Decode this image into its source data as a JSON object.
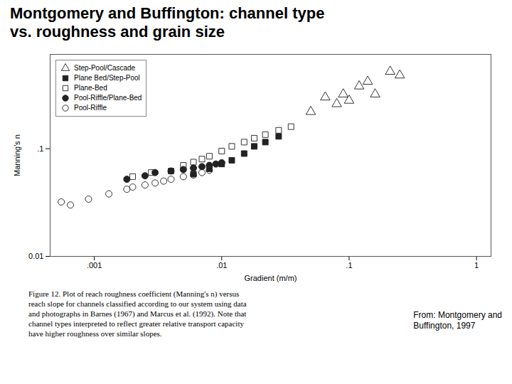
{
  "chart_data": {
    "type": "scatter",
    "title": "Montgomery and Buffington: channel type\nvs. roughness and grain size",
    "x_label": "Gradient (m/m)",
    "y_label": "Manning's n",
    "annotations": [
      "Figure 12. Plot of reach roughness coefficient (Manning's n) versus\nreach slope for channels classified according to our system using data\nand photographs in Barnes (1967) and Marcus et al. (1992). Note that\nchannel types interpreted to reflect greater relative transport capacity\nhave higher roughness over similar slopes.",
      "From: Montgomery and\nBuffington, 1997"
    ],
    "log": true,
    "grid": false,
    "legend": "upper left",
    "xlim": [
      0.00045,
      1.3
    ],
    "ylim": [
      0.01,
      0.75
    ],
    "xticks": [
      {
        "value": 0.001,
        "label": ".001"
      },
      {
        "value": 0.01,
        "label": ".01"
      },
      {
        "value": 0.1,
        "label": ".1"
      },
      1
    ],
    "yticks": [
      0.01,
      {
        "value": 0.1,
        "label": ".1"
      }
    ],
    "series": [
      {
        "name": "Step-Pool/Cascade",
        "marker": "triangle-open",
        "color": "#333333",
        "x": [
          0.05,
          0.065,
          0.08,
          0.09,
          0.1,
          0.12,
          0.14,
          0.16,
          0.21,
          0.25
        ],
        "values": [
          0.22,
          0.3,
          0.26,
          0.32,
          0.28,
          0.38,
          0.42,
          0.32,
          0.52,
          0.48
        ]
      },
      {
        "name": "Plane Bed/Step-Pool",
        "marker": "square",
        "color": "#222222",
        "x": [
          0.006,
          0.008,
          0.01,
          0.012,
          0.015,
          0.018,
          0.022,
          0.028
        ],
        "values": [
          0.058,
          0.065,
          0.072,
          0.078,
          0.09,
          0.105,
          0.115,
          0.13
        ]
      },
      {
        "name": "Plane-Bed",
        "marker": "square-open",
        "color": "#333333",
        "x": [
          0.002,
          0.0028,
          0.004,
          0.005,
          0.006,
          0.007,
          0.008,
          0.01,
          0.012,
          0.015,
          0.018,
          0.022,
          0.028,
          0.035
        ],
        "values": [
          0.055,
          0.06,
          0.062,
          0.07,
          0.075,
          0.08,
          0.085,
          0.095,
          0.105,
          0.115,
          0.125,
          0.135,
          0.148,
          0.16
        ]
      },
      {
        "name": "Pool-Riffle/Plane-Bed",
        "marker": "circle",
        "color": "#222222",
        "x": [
          0.0018,
          0.0025,
          0.003,
          0.004,
          0.005,
          0.006,
          0.007,
          0.008,
          0.009,
          0.01
        ],
        "values": [
          0.052,
          0.056,
          0.06,
          0.062,
          0.064,
          0.066,
          0.068,
          0.07,
          0.072,
          0.074
        ]
      },
      {
        "name": "Pool-Riffle",
        "marker": "circle-open",
        "color": "#333333",
        "x": [
          0.00055,
          0.00065,
          0.0009,
          0.0013,
          0.0018,
          0.002,
          0.0025,
          0.003,
          0.0035,
          0.004,
          0.005,
          0.006,
          0.007,
          0.008
        ],
        "values": [
          0.032,
          0.03,
          0.034,
          0.038,
          0.042,
          0.044,
          0.046,
          0.048,
          0.05,
          0.052,
          0.055,
          0.057,
          0.06,
          0.063
        ]
      }
    ]
  }
}
